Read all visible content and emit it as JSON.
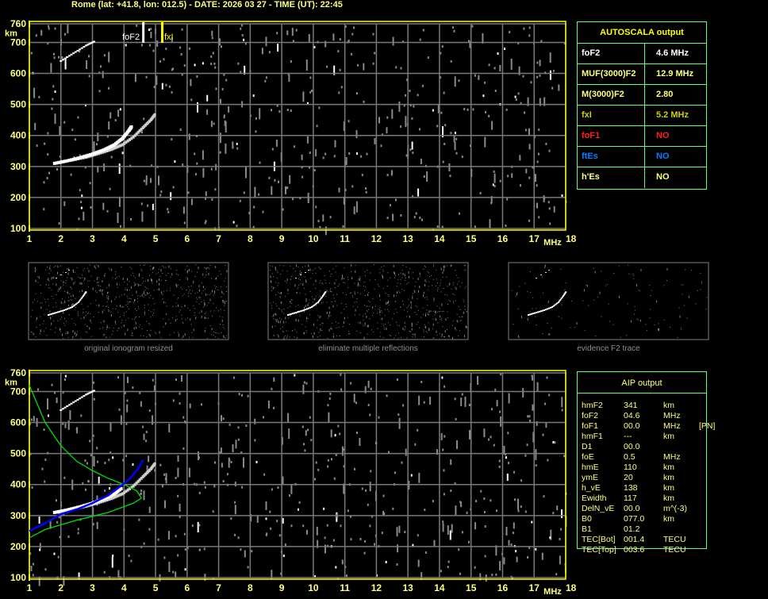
{
  "header": {
    "title": "Rome (lat: +41.8, lon: 012.5) - DATE: 2026 03 27 - TIME (UT): 22:45"
  },
  "colors": {
    "frame": "#ffff00",
    "grid": "#7a7a7a",
    "axis_text": "#ffff80",
    "table_border": "#60ff80",
    "o_trace": "#ffffff",
    "x_trace": "#d0d0d0",
    "aip_trace": "#0000ff",
    "profile": "#00e000",
    "foF1": "#ff2020",
    "ftEs": "#0080ff",
    "fxI": "#d0d000"
  },
  "autoscala": {
    "title": "AUTOSCALA output",
    "rows": [
      {
        "label": "foF2",
        "value": "4.6 MHz",
        "color": "#ffffff"
      },
      {
        "label": "MUF(3000)F2",
        "value": "12.9 MHz",
        "color": "#ffff80"
      },
      {
        "label": "M(3000)F2",
        "value": "2.80",
        "color": "#ffff80"
      },
      {
        "label": "fxI",
        "value": "5.2 MHz",
        "color": "#d0d000"
      },
      {
        "label": "foF1",
        "value": "NO",
        "color": "#ff2020"
      },
      {
        "label": "ftEs",
        "value": "NO",
        "color": "#0080ff"
      },
      {
        "label": "h'Es",
        "value": "NO",
        "color": "#ffff80"
      }
    ]
  },
  "aip": {
    "title": "AIP output",
    "rows": [
      [
        "hmF2",
        "341",
        "km",
        ""
      ],
      [
        "foF2",
        "04.6",
        "MHz",
        ""
      ],
      [
        "foF1",
        "00.0",
        "MHz",
        "[PN]"
      ],
      [
        "hmF1",
        "---",
        "km",
        ""
      ],
      [
        "D1",
        "00.0",
        "",
        ""
      ],
      [
        "foE",
        "0.5",
        "MHz",
        ""
      ],
      [
        "hmE",
        "110",
        "km",
        ""
      ],
      [
        "ymE",
        "20",
        "km",
        ""
      ],
      [
        "h_vE",
        "138",
        "km",
        ""
      ],
      [
        "Ewidth",
        "117",
        "km",
        ""
      ],
      [
        "DelN_vE",
        "00.0",
        "m^(-3)",
        ""
      ],
      [
        "B0",
        "077.0",
        "km",
        ""
      ],
      [
        "B1",
        "01.2",
        "",
        ""
      ],
      [
        "TEC[Bot]",
        "001.4",
        "TECU",
        ""
      ],
      [
        "TEC[Top]",
        "003.6",
        "TECU",
        ""
      ]
    ]
  },
  "thumbnails": [
    {
      "caption": "original ionogram resized"
    },
    {
      "caption": "eliminate multiple reflections"
    },
    {
      "caption": "evidence F2 trace"
    }
  ],
  "chart_data": [
    {
      "type": "scatter",
      "name_on_chart": "",
      "xunit": "MHz",
      "yunit": "km",
      "xlim": [
        1,
        18
      ],
      "ylim": [
        100,
        760
      ],
      "xticks": [
        "1",
        "2",
        "3",
        "4",
        "5",
        "6",
        "7",
        "8",
        "9",
        "10",
        "11",
        "12",
        "13",
        "14",
        "15",
        "16",
        "17",
        "18"
      ],
      "yticks": [
        "100",
        "200",
        "300",
        "400",
        "500",
        "600",
        "700",
        "760"
      ],
      "grid": true,
      "markers": [
        {
          "label": "foF2",
          "freq": 4.6,
          "color": "#ffffff"
        },
        {
          "label": "fxI",
          "freq": 5.2,
          "color": "#ffff00"
        }
      ],
      "o_trace": [
        [
          1.8,
          310
        ],
        [
          2.2,
          318
        ],
        [
          2.6,
          328
        ],
        [
          3.0,
          340
        ],
        [
          3.4,
          355
        ],
        [
          3.7,
          370
        ],
        [
          3.95,
          390
        ],
        [
          4.15,
          415
        ],
        [
          4.25,
          430
        ]
      ],
      "x_trace": [
        [
          2.3,
          320
        ],
        [
          2.8,
          330
        ],
        [
          3.2,
          342
        ],
        [
          3.6,
          355
        ],
        [
          3.95,
          370
        ],
        [
          4.3,
          395
        ],
        [
          4.6,
          425
        ],
        [
          4.85,
          450
        ],
        [
          5.0,
          470
        ]
      ],
      "echo_trace": [
        [
          2.0,
          640
        ],
        [
          2.4,
          665
        ],
        [
          2.8,
          690
        ],
        [
          3.1,
          705
        ]
      ]
    },
    {
      "type": "line",
      "xunit": "MHz",
      "yunit": "km",
      "xlim": [
        1,
        18
      ],
      "ylim": [
        100,
        760
      ],
      "xticks": [
        "1",
        "2",
        "3",
        "4",
        "5",
        "6",
        "7",
        "8",
        "9",
        "10",
        "11",
        "12",
        "13",
        "14",
        "15",
        "16",
        "17",
        "18"
      ],
      "yticks": [
        "100",
        "200",
        "300",
        "400",
        "500",
        "600",
        "700",
        "760"
      ],
      "grid": true,
      "o_trace": [
        [
          1.8,
          310
        ],
        [
          2.2,
          318
        ],
        [
          2.6,
          328
        ],
        [
          3.0,
          340
        ],
        [
          3.4,
          355
        ],
        [
          3.7,
          370
        ],
        [
          3.95,
          390
        ]
      ],
      "x_trace": [
        [
          2.3,
          320
        ],
        [
          2.8,
          330
        ],
        [
          3.2,
          342
        ],
        [
          3.6,
          355
        ],
        [
          3.95,
          370
        ],
        [
          4.3,
          395
        ],
        [
          4.6,
          425
        ],
        [
          4.85,
          450
        ],
        [
          5.0,
          470
        ]
      ],
      "aip_trace": [
        [
          1.0,
          250
        ],
        [
          1.5,
          275
        ],
        [
          2.0,
          305
        ],
        [
          2.5,
          320
        ],
        [
          3.0,
          340
        ],
        [
          3.5,
          365
        ],
        [
          3.9,
          395
        ],
        [
          4.2,
          420
        ],
        [
          4.5,
          460
        ],
        [
          4.6,
          480
        ]
      ],
      "profile": [
        [
          1.0,
          720
        ],
        [
          1.5,
          600
        ],
        [
          2.0,
          525
        ],
        [
          2.5,
          475
        ],
        [
          3.0,
          445
        ],
        [
          3.5,
          420
        ],
        [
          4.0,
          400
        ],
        [
          4.4,
          380
        ],
        [
          4.55,
          356
        ],
        [
          4.3,
          340
        ],
        [
          3.5,
          310
        ],
        [
          2.5,
          285
        ],
        [
          1.5,
          255
        ],
        [
          1.0,
          228
        ]
      ],
      "echo_trace": [
        [
          2.0,
          640
        ],
        [
          2.4,
          665
        ],
        [
          2.8,
          690
        ],
        [
          3.1,
          705
        ]
      ]
    }
  ]
}
